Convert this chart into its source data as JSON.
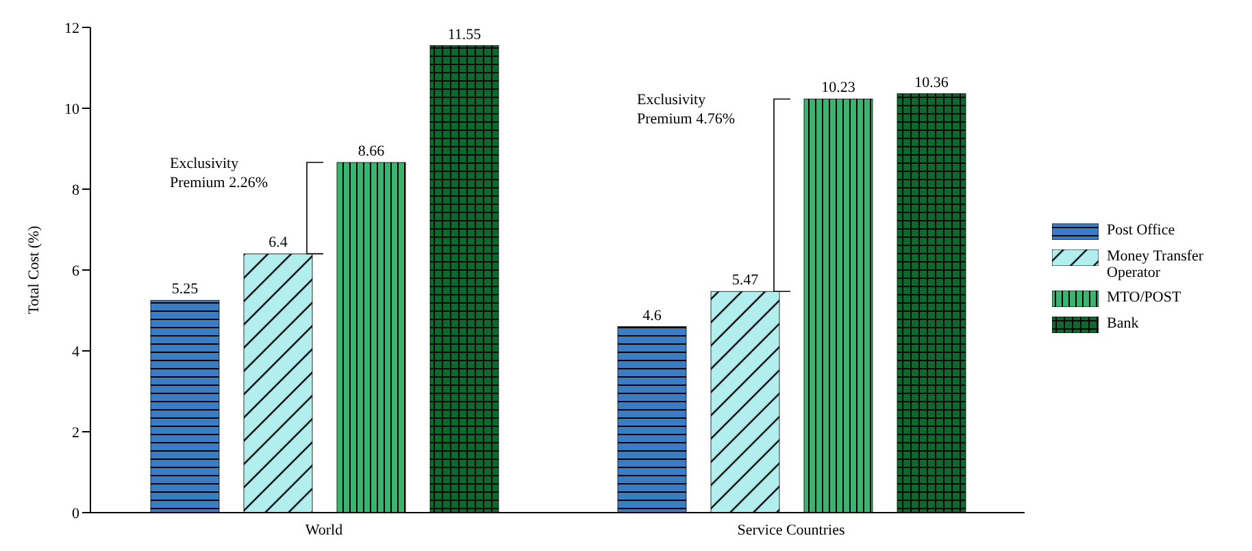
{
  "chart_data": {
    "type": "bar",
    "ylabel": "Total Cost (%)",
    "categories": [
      "World",
      "Service Countries"
    ],
    "series": [
      {
        "name": "Post Office",
        "color": "#3b7dc4",
        "values": [
          5.25,
          4.6
        ]
      },
      {
        "name": "Money Transfer Operator",
        "color": "#b2eeee",
        "values": [
          6.4,
          5.47
        ]
      },
      {
        "name": "MTO/POST",
        "color": "#3cb36e",
        "values": [
          8.66,
          10.23
        ]
      },
      {
        "name": "Bank",
        "color": "#0b6b2c",
        "values": [
          11.55,
          10.36
        ]
      }
    ],
    "ylim": [
      0,
      12
    ],
    "yticks": [
      0,
      2,
      4,
      6,
      8,
      10,
      12
    ],
    "data_labels": true,
    "legend": "right",
    "grid": false,
    "annotations": [
      "Exclusivity Premium 2.26%",
      "Exclusivity Premium 4.76%"
    ]
  }
}
